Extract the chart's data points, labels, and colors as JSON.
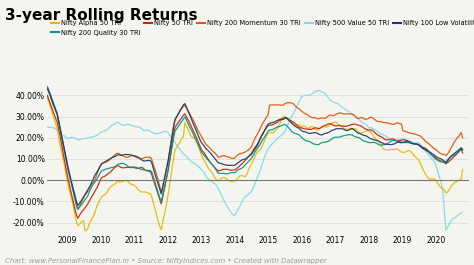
{
  "title": "3-year Rolling Returns",
  "title_fontsize": 11,
  "background_color": "#f5f5f0",
  "series": {
    "Nifty Alpha 50 TRI": {
      "color": "#e8b800",
      "lw": 0.9
    },
    "Nifty 200 Quality 30 TRI": {
      "color": "#009688",
      "lw": 0.9
    },
    "Nifty 50 TRI": {
      "color": "#cc2200",
      "lw": 0.9
    },
    "Nifty 200 Momentum 30 TRI": {
      "color": "#e65100",
      "lw": 0.9
    },
    "Nifty 500 Value 50 TRI": {
      "color": "#80d8e8",
      "lw": 0.9
    },
    "Nifty 100 Low Volatility 30 TRI": {
      "color": "#1a3a6b",
      "lw": 0.9
    }
  },
  "legend_order": [
    "Nifty Alpha 50 TRI",
    "Nifty 200 Quality 30 TRI",
    "Nifty 50 TRI",
    "Nifty 200 Momentum 30 TRI",
    "Nifty 500 Value 50 TRI",
    "Nifty 100 Low Volatility 30 TRI"
  ],
  "yticks": [
    -20,
    -10,
    0,
    10,
    20,
    30,
    40
  ],
  "ytick_labels": [
    "-20.00%",
    "-10.00%",
    "0.00%",
    "10.00%",
    "20.00%",
    "30.00%",
    "40.00%"
  ],
  "xlabel_years": [
    2009,
    2010,
    2011,
    2012,
    2013,
    2014,
    2015,
    2016,
    2017,
    2018,
    2019,
    2020
  ],
  "ylim": [
    -25,
    50
  ],
  "xlim": [
    2008.4,
    2021.0
  ],
  "source_text": "Chart: www.PersonalFinancePlan.in • Source: NiftyIndices.com • Created with Datawrapper",
  "source_fontsize": 5.0,
  "legend_fontsize": 4.8,
  "tick_fontsize": 5.5,
  "grid_color": "#d8d8d8",
  "zero_line_color": "#777777"
}
